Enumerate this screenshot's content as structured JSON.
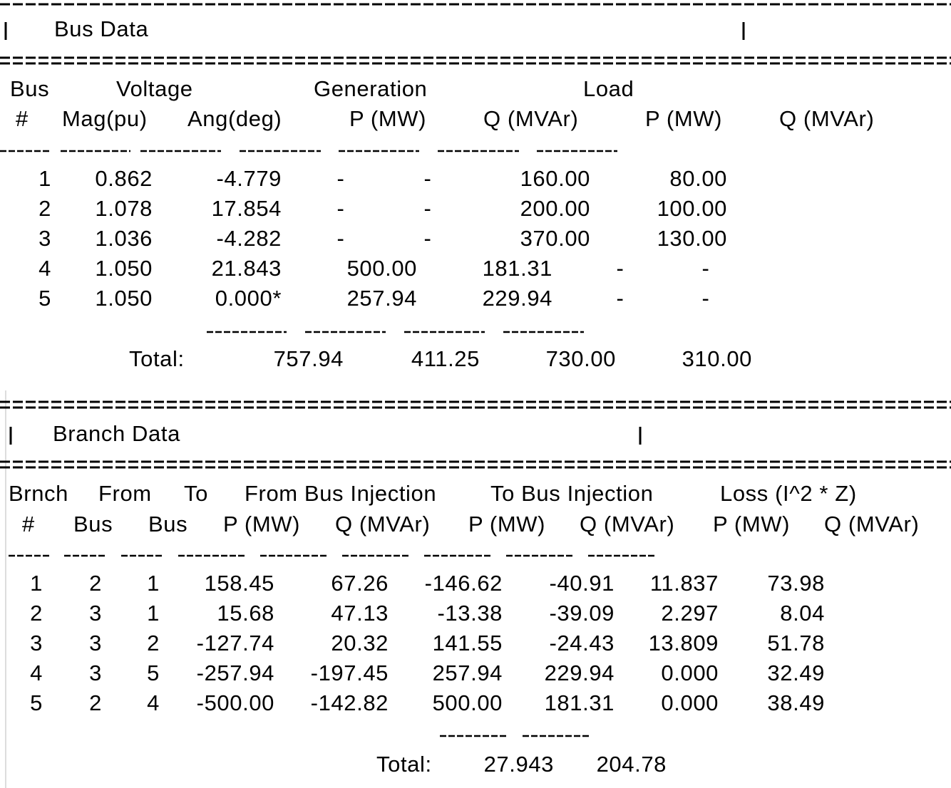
{
  "bus_data": {
    "title": "Bus Data",
    "header_groups": [
      "Bus",
      "Voltage",
      "Generation",
      "Load"
    ],
    "columns": [
      "#",
      "Mag(pu)",
      "Ang(deg)",
      "P (MW)",
      "Q (MVAr)",
      "P (MW)",
      "Q (MVAr)"
    ],
    "rows": [
      [
        "1",
        "0.862",
        "-4.779",
        "-",
        "-",
        "160.00",
        "80.00"
      ],
      [
        "2",
        "1.078",
        "17.854",
        "-",
        "-",
        "200.00",
        "100.00"
      ],
      [
        "3",
        "1.036",
        "-4.282",
        "-",
        "-",
        "370.00",
        "130.00"
      ],
      [
        "4",
        "1.050",
        "21.843",
        "500.00",
        "181.31",
        "-",
        "-"
      ],
      [
        "5",
        "1.050",
        "0.000*",
        "257.94",
        "229.94",
        "-",
        "-"
      ]
    ],
    "total": {
      "label": "Total:",
      "values": [
        "757.94",
        "411.25",
        "730.00",
        "310.00"
      ]
    }
  },
  "branch_data": {
    "title": "Branch Data",
    "header_groups": [
      "Brnch",
      "From",
      "To",
      "From Bus Injection",
      "To Bus Injection",
      "Loss (I^2 * Z)"
    ],
    "columns": [
      "#",
      "Bus",
      "Bus",
      "P (MW)",
      "Q (MVAr)",
      "P (MW)",
      "Q (MVAr)",
      "P (MW)",
      "Q (MVAr)"
    ],
    "rows": [
      [
        "1",
        "2",
        "1",
        "158.45",
        "67.26",
        "-146.62",
        "-40.91",
        "11.837",
        "73.98"
      ],
      [
        "2",
        "3",
        "1",
        "15.68",
        "47.13",
        "-13.38",
        "-39.09",
        "2.297",
        "8.04"
      ],
      [
        "3",
        "3",
        "2",
        "-127.74",
        "20.32",
        "141.55",
        "-24.43",
        "13.809",
        "51.78"
      ],
      [
        "4",
        "3",
        "5",
        "-257.94",
        "-197.45",
        "257.94",
        "229.94",
        "0.000",
        "32.49"
      ],
      [
        "5",
        "2",
        "4",
        "-500.00",
        "-142.82",
        "500.00",
        "181.31",
        "0.000",
        "38.49"
      ]
    ],
    "total": {
      "label": "Total:",
      "values": [
        "27.943",
        "204.78"
      ]
    }
  }
}
